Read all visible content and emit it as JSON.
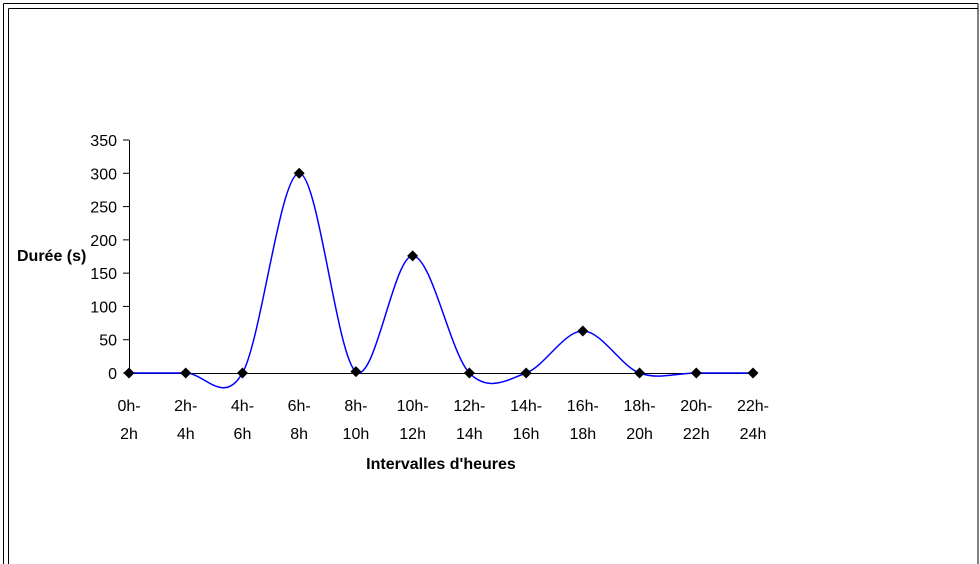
{
  "chart_data": {
    "type": "line",
    "title": "",
    "xlabel": "Intervalles d'heures",
    "ylabel": "Durée (s)",
    "categories": [
      [
        "0h-",
        "2h"
      ],
      [
        "2h-",
        "4h"
      ],
      [
        "4h-",
        "6h"
      ],
      [
        "6h-",
        "8h"
      ],
      [
        "8h-",
        "10h"
      ],
      [
        "10h-",
        "12h"
      ],
      [
        "12h-",
        "14h"
      ],
      [
        "14h-",
        "16h"
      ],
      [
        "16h-",
        "18h"
      ],
      [
        "18h-",
        "20h"
      ],
      [
        "20h-",
        "22h"
      ],
      [
        "22h-",
        "24h"
      ]
    ],
    "series": [
      {
        "values": [
          0,
          0,
          0,
          300,
          2,
          176,
          0,
          0,
          63,
          0,
          0,
          0
        ],
        "color": "#0000ff",
        "marker": "diamond",
        "marker_color": "#000000",
        "smoothed": true
      }
    ],
    "ylim": [
      0,
      350
    ],
    "yticks": [
      0,
      50,
      100,
      150,
      200,
      250,
      300,
      350
    ],
    "grid": false,
    "legend": "none"
  }
}
